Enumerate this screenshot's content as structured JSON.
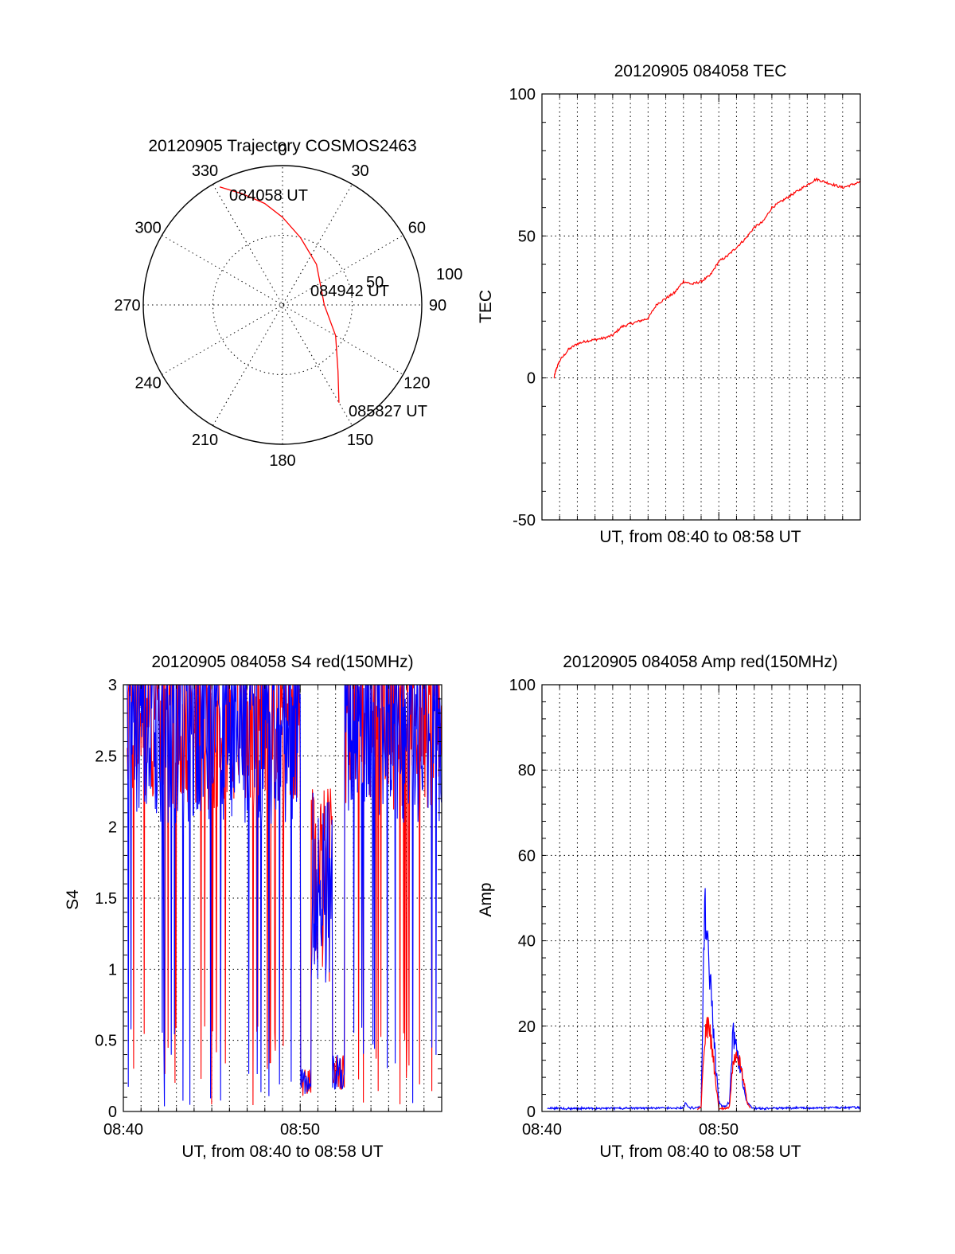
{
  "chart_data": [
    {
      "type": "polar",
      "title": "20120905 Trajectory COSMOS2463",
      "angle_labels": [
        "0",
        "30",
        "60",
        "90",
        "120",
        "150",
        "180",
        "210",
        "240",
        "270",
        "300",
        "330"
      ],
      "radial_labels": [
        "50",
        "100"
      ],
      "trajectory": {
        "color": "#ff0000",
        "azimuth_deg": [
          332,
          340,
          350,
          0,
          15,
          40,
          90,
          120,
          140,
          150
        ],
        "radius": [
          96,
          85,
          74,
          63,
          50,
          38,
          30,
          44,
          62,
          81
        ]
      },
      "annotations": [
        {
          "text": "084058 UT"
        },
        {
          "text": "084942 UT"
        },
        {
          "text": "085827 UT"
        }
      ]
    },
    {
      "type": "line",
      "title": "20120905 084058 TEC",
      "xlabel": "UT, from 08:40 to 08:58 UT",
      "ylabel": "TEC",
      "xlim": [
        0,
        18
      ],
      "ylim": [
        -50,
        100
      ],
      "yticks": [
        "-50",
        "0",
        "50",
        "100"
      ],
      "grid": true,
      "series": [
        {
          "color": "#ff0000",
          "x": [
            0.68,
            0.8,
            1.0,
            1.5,
            2.0,
            2.5,
            3.0,
            3.5,
            4.0,
            4.5,
            5.0,
            5.5,
            6.0,
            6.5,
            7.0,
            7.5,
            8.0,
            8.5,
            9.0,
            9.5,
            10.0,
            10.5,
            11.0,
            11.5,
            12.0,
            12.5,
            13.0,
            13.5,
            14.0,
            14.5,
            15.0,
            15.5,
            16.0,
            16.5,
            17.0,
            17.5,
            18.0
          ],
          "y": [
            0,
            3,
            6,
            10,
            12,
            13,
            13.5,
            14,
            15,
            18,
            19,
            20,
            21,
            26,
            28,
            30,
            34,
            33,
            34,
            36,
            41,
            43,
            46,
            49,
            53,
            55,
            60,
            62,
            64,
            66,
            68,
            70,
            69,
            68,
            67,
            68,
            69
          ]
        }
      ]
    },
    {
      "type": "line",
      "title": "20120905 084058 S4 red(150MHz)",
      "xlabel": "UT, from 08:40 to 08:58 UT",
      "ylabel": "S4",
      "xlim": [
        0,
        18
      ],
      "ylim": [
        0,
        3
      ],
      "xticks": [
        "08:40",
        "08:50"
      ],
      "yticks": [
        "0",
        "0.5",
        "1",
        "1.5",
        "2",
        "2.5",
        "3"
      ],
      "grid": true,
      "series": [
        {
          "color": "#ff0000",
          "x": [
            0.2,
            18
          ],
          "y": [
            2.5,
            2.6
          ]
        },
        {
          "color": "#0000ff",
          "x": [
            0.2,
            18
          ],
          "y": [
            2.4,
            2.5
          ]
        }
      ]
    },
    {
      "type": "line",
      "title": "20120905 084058 Amp red(150MHz)",
      "xlabel": "UT, from 08:40 to 08:58 UT",
      "ylabel": "Amp",
      "xlim": [
        0,
        18
      ],
      "ylim": [
        0,
        100
      ],
      "xticks": [
        "08:40",
        "08:50"
      ],
      "yticks": [
        "0",
        "20",
        "40",
        "60",
        "80",
        "100"
      ],
      "grid": true,
      "series": [
        {
          "color": "#0000ff",
          "x": [
            0.3,
            8.0,
            8.1,
            8.2,
            8.3,
            9.0,
            9.2,
            9.4,
            9.6,
            9.8,
            10.0,
            10.2,
            10.4,
            10.6,
            10.8,
            11.0,
            11.2,
            11.4,
            11.6,
            11.8,
            12.0,
            12.5,
            18
          ],
          "y": [
            0.5,
            0.6,
            2,
            1,
            0.6,
            0.8,
            50,
            35,
            25,
            12,
            2,
            1,
            1,
            2,
            18,
            14,
            10,
            6,
            2,
            1,
            0.6,
            0.5,
            0.8
          ]
        },
        {
          "color": "#ff0000",
          "x": [
            8.8,
            9.0,
            9.2,
            9.4,
            9.6,
            9.8,
            10.0,
            10.4,
            10.6,
            10.8,
            11.0,
            11.2,
            11.4,
            11.6,
            11.8
          ],
          "y": [
            0.3,
            1,
            18,
            20,
            16,
            8,
            0.5,
            0.5,
            1,
            10,
            14,
            11,
            7,
            2,
            0.3
          ]
        }
      ]
    }
  ]
}
